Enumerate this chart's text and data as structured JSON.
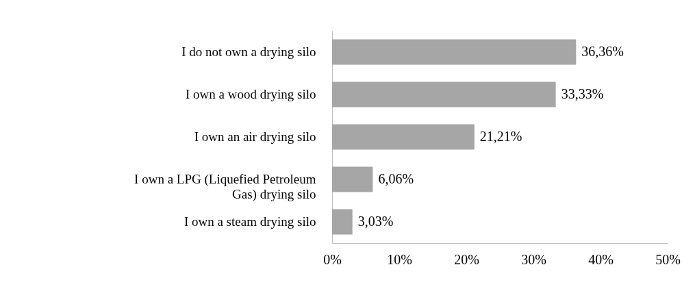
{
  "chart_data": {
    "type": "bar",
    "orientation": "horizontal",
    "categories": [
      "I do not own a drying silo",
      "I own a wood drying silo",
      "I own an air drying silo",
      "I own a LPG (Liquefied Petroleum Gas) drying silo",
      "I own a steam drying silo"
    ],
    "values": [
      36.36,
      33.33,
      21.21,
      6.06,
      3.03
    ],
    "value_labels": [
      "36,36%",
      "33,33%",
      "21,21%",
      "6,06%",
      "3,03%"
    ],
    "color": "#a6a6a6",
    "xlim": [
      0,
      50
    ],
    "xticks": [
      {
        "value": 0,
        "label": "0%"
      },
      {
        "value": 10,
        "label": "10%"
      },
      {
        "value": 20,
        "label": "20%"
      },
      {
        "value": 30,
        "label": "30%"
      },
      {
        "value": 40,
        "label": "40%"
      },
      {
        "value": 50,
        "label": "50%"
      }
    ],
    "grid": false
  }
}
